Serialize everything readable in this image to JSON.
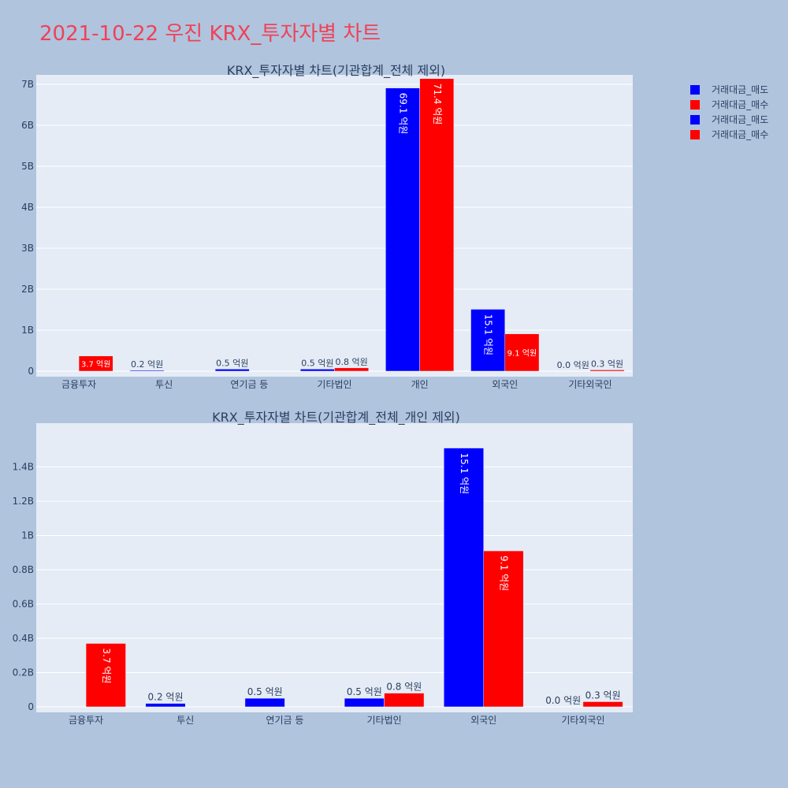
{
  "title": "2021-10-22 우진 KRX_투자자별 차트",
  "legend": [
    {
      "label": "거래대금_매도",
      "color": "#0000ff"
    },
    {
      "label": "거래대금_매수",
      "color": "#ff0000"
    },
    {
      "label": "거래대금_매도",
      "color": "#0000ff"
    },
    {
      "label": "거래대금_매수",
      "color": "#ff0000"
    }
  ],
  "chart_data": [
    {
      "type": "bar",
      "title": "KRX_투자자별 차트(기관합계_전체 제외)",
      "categories": [
        "금융투자",
        "투신",
        "연기금 등",
        "기타법인",
        "개인",
        "외국인",
        "기타외국인"
      ],
      "ylim": [
        0,
        7000000000.0
      ],
      "yticks": [
        0,
        1000000000.0,
        2000000000.0,
        3000000000.0,
        4000000000.0,
        5000000000.0,
        6000000000.0,
        7000000000.0
      ],
      "ytick_labels": [
        "0",
        "1B",
        "2B",
        "3B",
        "4B",
        "5B",
        "6B",
        "7B"
      ],
      "grid": true,
      "series": [
        {
          "name": "거래대금_매도",
          "color": "#0000ff",
          "values": [
            0,
            20000000.0,
            50000000.0,
            50000000.0,
            6910000000.0,
            1510000000.0,
            0
          ],
          "labels": [
            "",
            "0.2 억원",
            "0.5 억원",
            "0.5 억원",
            "69.1 억원",
            "15.1 억원",
            "0.0 억원"
          ]
        },
        {
          "name": "거래대금_매수",
          "color": "#ff0000",
          "values": [
            370000000.0,
            0,
            0,
            80000000.0,
            7140000000.0,
            910000000.0,
            30000000.0
          ],
          "labels": [
            "3.7 억원",
            "",
            "",
            "0.8 억원",
            "71.4 억원",
            "9.1 억원",
            "0.3 억원"
          ]
        }
      ]
    },
    {
      "type": "bar",
      "title": "KRX_투자자별 차트(기관합계_전체_개인 제외)",
      "categories": [
        "금융투자",
        "투신",
        "연기금 등",
        "기타법인",
        "외국인",
        "기타외국인"
      ],
      "ylim": [
        0,
        1600000000.0
      ],
      "yticks": [
        0,
        200000000.0,
        400000000.0,
        600000000.0,
        800000000.0,
        1000000000.0,
        1200000000.0,
        1400000000.0
      ],
      "ytick_labels": [
        "0",
        "0.2B",
        "0.4B",
        "0.6B",
        "0.8B",
        "1B",
        "1.2B",
        "1.4B"
      ],
      "grid": true,
      "series": [
        {
          "name": "거래대금_매도",
          "color": "#0000ff",
          "values": [
            0,
            20000000.0,
            50000000.0,
            50000000.0,
            1510000000.0,
            0
          ],
          "labels": [
            "",
            "0.2 억원",
            "0.5 억원",
            "0.5 억원",
            "15.1 억원",
            "0.0 억원"
          ]
        },
        {
          "name": "거래대금_매수",
          "color": "#ff0000",
          "values": [
            370000000.0,
            0,
            0,
            80000000.0,
            910000000.0,
            30000000.0
          ],
          "labels": [
            "3.7 억원",
            "",
            "",
            "0.8 억원",
            "9.1 억원",
            "0.3 억원"
          ]
        }
      ]
    }
  ]
}
